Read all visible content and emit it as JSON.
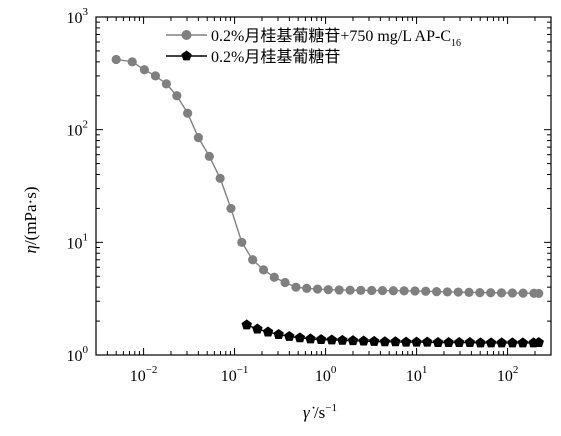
{
  "chart_data": {
    "type": "line",
    "x_scale": "log",
    "y_scale": "log",
    "xlim": [
      0.003,
      300
    ],
    "ylim": [
      1,
      1000
    ],
    "grid": false,
    "legend_position": "top-right",
    "ylabel": {
      "symbol": "η",
      "text": "/(mPa·s)"
    },
    "xlabel": {
      "symbol": "γ̇",
      "text": " /s",
      "sup": "−1"
    },
    "x_ticks": [
      {
        "base": "10",
        "exp": "−2",
        "value": 0.01
      },
      {
        "base": "10",
        "exp": "−1",
        "value": 0.1
      },
      {
        "base": "10",
        "exp": "0",
        "value": 1
      },
      {
        "base": "10",
        "exp": "1",
        "value": 10
      },
      {
        "base": "10",
        "exp": "2",
        "value": 100
      }
    ],
    "y_ticks": [
      {
        "base": "10",
        "exp": "0",
        "value": 1
      },
      {
        "base": "10",
        "exp": "1",
        "value": 10
      },
      {
        "base": "10",
        "exp": "2",
        "value": 100
      },
      {
        "base": "10",
        "exp": "3",
        "value": 1000
      }
    ],
    "series": [
      {
        "name": "0.2%月桂基葡糖苷+750 mg/L AP-C",
        "name_sub": "16",
        "color": "#808080",
        "marker": "circle",
        "points": [
          [
            0.005,
            420
          ],
          [
            0.0075,
            400
          ],
          [
            0.0102,
            340
          ],
          [
            0.0135,
            300
          ],
          [
            0.0178,
            255
          ],
          [
            0.0232,
            200
          ],
          [
            0.0305,
            140
          ],
          [
            0.04,
            85
          ],
          [
            0.0528,
            58
          ],
          [
            0.0694,
            37
          ],
          [
            0.0912,
            20
          ],
          [
            0.12,
            10
          ],
          [
            0.158,
            7.0
          ],
          [
            0.208,
            5.7
          ],
          [
            0.273,
            4.9
          ],
          [
            0.359,
            4.4
          ],
          [
            0.472,
            4.0
          ],
          [
            0.621,
            3.9
          ],
          [
            0.816,
            3.85
          ],
          [
            1.07,
            3.8
          ],
          [
            1.41,
            3.78
          ],
          [
            1.86,
            3.76
          ],
          [
            2.44,
            3.75
          ],
          [
            3.21,
            3.74
          ],
          [
            4.22,
            3.73
          ],
          [
            5.55,
            3.72
          ],
          [
            7.3,
            3.71
          ],
          [
            9.6,
            3.7
          ],
          [
            12.6,
            3.68
          ],
          [
            16.6,
            3.65
          ],
          [
            21.8,
            3.63
          ],
          [
            28.7,
            3.62
          ],
          [
            37.7,
            3.6
          ],
          [
            49.6,
            3.58
          ],
          [
            65.2,
            3.57
          ],
          [
            85.7,
            3.56
          ],
          [
            113,
            3.55
          ],
          [
            148,
            3.54
          ],
          [
            195,
            3.53
          ],
          [
            220,
            3.52
          ]
        ]
      },
      {
        "name": "0.2%月桂基葡糖苷",
        "name_sub": "",
        "color": "#000000",
        "marker": "pentagon",
        "points": [
          [
            0.136,
            1.85
          ],
          [
            0.178,
            1.7
          ],
          [
            0.233,
            1.6
          ],
          [
            0.305,
            1.52
          ],
          [
            0.399,
            1.46
          ],
          [
            0.522,
            1.42
          ],
          [
            0.683,
            1.39
          ],
          [
            0.893,
            1.37
          ],
          [
            1.17,
            1.36
          ],
          [
            1.53,
            1.35
          ],
          [
            2.0,
            1.34
          ],
          [
            2.62,
            1.33
          ],
          [
            3.42,
            1.32
          ],
          [
            4.48,
            1.31
          ],
          [
            5.86,
            1.31
          ],
          [
            7.67,
            1.3
          ],
          [
            10.0,
            1.3
          ],
          [
            13.1,
            1.3
          ],
          [
            17.2,
            1.29
          ],
          [
            22.5,
            1.29
          ],
          [
            29.4,
            1.29
          ],
          [
            38.5,
            1.29
          ],
          [
            50.4,
            1.28
          ],
          [
            65.9,
            1.28
          ],
          [
            86.2,
            1.28
          ],
          [
            113,
            1.28
          ],
          [
            147,
            1.28
          ],
          [
            193,
            1.28
          ],
          [
            220,
            1.29
          ]
        ]
      }
    ]
  }
}
